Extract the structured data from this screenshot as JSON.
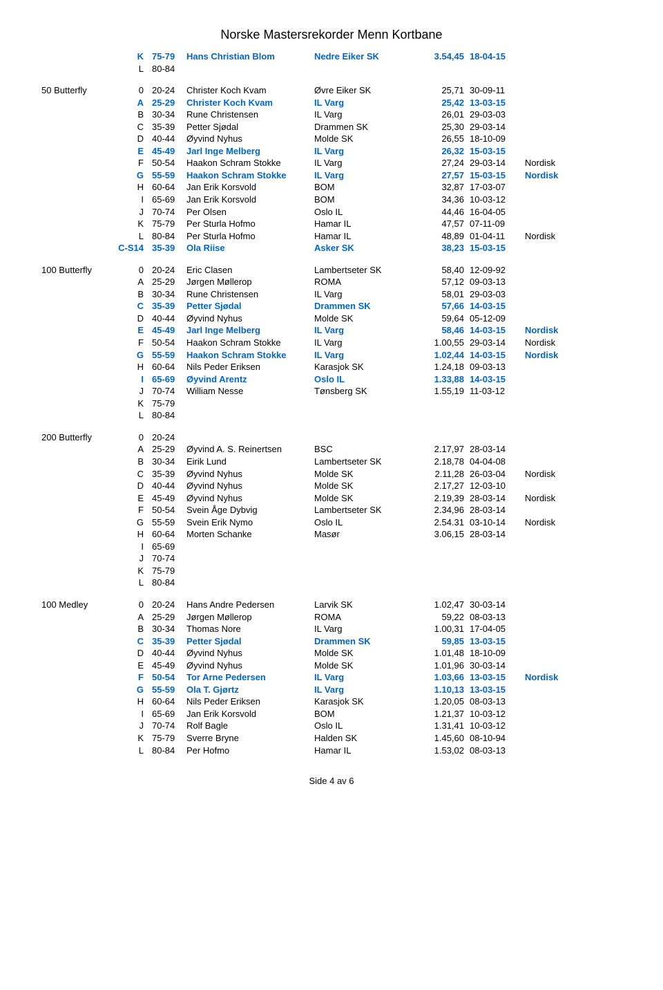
{
  "title": "Norske Mastersrekorder Menn Kortbane",
  "footer": "Side 4 av 6",
  "colors": {
    "highlight": "#0066cc",
    "text": "#000000",
    "background": "#ffffff"
  },
  "sections": [
    {
      "event": "",
      "rows": [
        {
          "letter": "K",
          "age": "75-79",
          "name": "Hans Christian Blom",
          "club": "Nedre Eiker SK",
          "time": "3.54,45",
          "date": "18-04-15",
          "note": "",
          "blue": true,
          "bold": true
        },
        {
          "letter": "L",
          "age": "80-84",
          "name": "",
          "club": "",
          "time": "",
          "date": "",
          "note": "",
          "blue": false,
          "bold": false
        }
      ]
    },
    {
      "event": "50 Butterfly",
      "rows": [
        {
          "letter": "0",
          "age": "20-24",
          "name": "Christer Koch Kvam",
          "club": "Øvre Eiker SK",
          "time": "25,71",
          "date": "30-09-11",
          "note": "",
          "blue": false,
          "bold": false
        },
        {
          "letter": "A",
          "age": "25-29",
          "name": "Christer Koch Kvam",
          "club": "IL Varg",
          "time": "25,42",
          "date": "13-03-15",
          "note": "",
          "blue": true,
          "bold": true
        },
        {
          "letter": "B",
          "age": "30-34",
          "name": "Rune Christensen",
          "club": "IL Varg",
          "time": "26,01",
          "date": "29-03-03",
          "note": "",
          "blue": false,
          "bold": false
        },
        {
          "letter": "C",
          "age": "35-39",
          "name": "Petter Sjødal",
          "club": "Drammen SK",
          "time": "25,30",
          "date": "29-03-14",
          "note": "",
          "blue": false,
          "bold": false
        },
        {
          "letter": "D",
          "age": "40-44",
          "name": "Øyvind Nyhus",
          "club": "Molde SK",
          "time": "26,55",
          "date": "18-10-09",
          "note": "",
          "blue": false,
          "bold": false
        },
        {
          "letter": "E",
          "age": "45-49",
          "name": "Jarl Inge Melberg",
          "club": "IL Varg",
          "time": "26,32",
          "date": "15-03-15",
          "note": "",
          "blue": true,
          "bold": true
        },
        {
          "letter": "F",
          "age": "50-54",
          "name": "Haakon Schram Stokke",
          "club": "IL Varg",
          "time": "27,24",
          "date": "29-03-14",
          "note": "Nordisk",
          "blue": false,
          "bold": false
        },
        {
          "letter": "G",
          "age": "55-59",
          "name": "Haakon Schram Stokke",
          "club": "IL Varg",
          "time": "27,57",
          "date": "15-03-15",
          "note": "Nordisk",
          "blue": true,
          "bold": true
        },
        {
          "letter": "H",
          "age": "60-64",
          "name": "Jan Erik Korsvold",
          "club": "BOM",
          "time": "32,87",
          "date": "17-03-07",
          "note": "",
          "blue": false,
          "bold": false
        },
        {
          "letter": "I",
          "age": "65-69",
          "name": "Jan Erik Korsvold",
          "club": "BOM",
          "time": "34,36",
          "date": "10-03-12",
          "note": "",
          "blue": false,
          "bold": false
        },
        {
          "letter": "J",
          "age": "70-74",
          "name": "Per Olsen",
          "club": "Oslo IL",
          "time": "44,46",
          "date": "16-04-05",
          "note": "",
          "blue": false,
          "bold": false
        },
        {
          "letter": "K",
          "age": "75-79",
          "name": "Per Sturla Hofmo",
          "club": "Hamar IL",
          "time": "47,57",
          "date": "07-11-09",
          "note": "",
          "blue": false,
          "bold": false
        },
        {
          "letter": "L",
          "age": "80-84",
          "name": "Per Sturla Hofmo",
          "club": "Hamar IL",
          "time": "48,89",
          "date": "01-04-11",
          "note": "Nordisk",
          "blue": false,
          "bold": false
        },
        {
          "letter": "C-S14",
          "age": "35-39",
          "name": "Ola Riise",
          "club": "Asker SK",
          "time": "38,23",
          "date": "15-03-15",
          "note": "",
          "blue": true,
          "bold": true
        }
      ]
    },
    {
      "event": "100 Butterfly",
      "rows": [
        {
          "letter": "0",
          "age": "20-24",
          "name": "Eric Clasen",
          "club": "Lambertseter SK",
          "time": "58,40",
          "date": "12-09-92",
          "note": "",
          "blue": false,
          "bold": false
        },
        {
          "letter": "A",
          "age": "25-29",
          "name": "Jørgen Møllerop",
          "club": "ROMA",
          "time": "57,12",
          "date": "09-03-13",
          "note": "",
          "blue": false,
          "bold": false
        },
        {
          "letter": "B",
          "age": "30-34",
          "name": "Rune Christensen",
          "club": "IL Varg",
          "time": "58,01",
          "date": "29-03-03",
          "note": "",
          "blue": false,
          "bold": false
        },
        {
          "letter": "C",
          "age": "35-39",
          "name": "Petter Sjødal",
          "club": "Drammen SK",
          "time": "57,66",
          "date": "14-03-15",
          "note": "",
          "blue": true,
          "bold": true
        },
        {
          "letter": "D",
          "age": "40-44",
          "name": "Øyvind Nyhus",
          "club": "Molde SK",
          "time": "59,64",
          "date": "05-12-09",
          "note": "",
          "blue": false,
          "bold": false
        },
        {
          "letter": "E",
          "age": "45-49",
          "name": "Jarl Inge Melberg",
          "club": "IL Varg",
          "time": "58,46",
          "date": "14-03-15",
          "note": "Nordisk",
          "blue": true,
          "bold": true
        },
        {
          "letter": "F",
          "age": "50-54",
          "name": "Haakon Schram Stokke",
          "club": "IL Varg",
          "time": "1.00,55",
          "date": "29-03-14",
          "note": "Nordisk",
          "blue": false,
          "bold": false
        },
        {
          "letter": "G",
          "age": "55-59",
          "name": "Haakon Schram Stokke",
          "club": "IL Varg",
          "time": "1.02,44",
          "date": "14-03-15",
          "note": "Nordisk",
          "blue": true,
          "bold": true
        },
        {
          "letter": "H",
          "age": "60-64",
          "name": "Nils Peder Eriksen",
          "club": "Karasjok SK",
          "time": "1.24,18",
          "date": "09-03-13",
          "note": "",
          "blue": false,
          "bold": false
        },
        {
          "letter": "I",
          "age": "65-69",
          "name": "Øyvind Arentz",
          "club": "Oslo IL",
          "time": "1.33,88",
          "date": "14-03-15",
          "note": "",
          "blue": true,
          "bold": true
        },
        {
          "letter": "J",
          "age": "70-74",
          "name": "William Nesse",
          "club": "Tønsberg SK",
          "time": "1.55,19",
          "date": "11-03-12",
          "note": "",
          "blue": false,
          "bold": false
        },
        {
          "letter": "K",
          "age": "75-79",
          "name": "",
          "club": "",
          "time": "",
          "date": "",
          "note": "",
          "blue": false,
          "bold": false
        },
        {
          "letter": "L",
          "age": "80-84",
          "name": "",
          "club": "",
          "time": "",
          "date": "",
          "note": "",
          "blue": false,
          "bold": false
        }
      ]
    },
    {
      "event": "200 Butterfly",
      "rows": [
        {
          "letter": "0",
          "age": "20-24",
          "name": "",
          "club": "",
          "time": "",
          "date": "",
          "note": "",
          "blue": false,
          "bold": false
        },
        {
          "letter": "A",
          "age": "25-29",
          "name": "Øyvind A. S. Reinertsen",
          "club": "BSC",
          "time": "2.17,97",
          "date": "28-03-14",
          "note": "",
          "blue": false,
          "bold": false
        },
        {
          "letter": "B",
          "age": "30-34",
          "name": "Eirik Lund",
          "club": "Lambertseter SK",
          "time": "2.18,78",
          "date": "04-04-08",
          "note": "",
          "blue": false,
          "bold": false
        },
        {
          "letter": "C",
          "age": "35-39",
          "name": "Øyvind Nyhus",
          "club": "Molde SK",
          "time": "2.11,28",
          "date": "26-03-04",
          "note": "Nordisk",
          "blue": false,
          "bold": false
        },
        {
          "letter": "D",
          "age": "40-44",
          "name": "Øyvind Nyhus",
          "club": "Molde SK",
          "time": "2.17,27",
          "date": "12-03-10",
          "note": "",
          "blue": false,
          "bold": false
        },
        {
          "letter": "E",
          "age": "45-49",
          "name": "Øyvind Nyhus",
          "club": "Molde SK",
          "time": "2.19,39",
          "date": "28-03-14",
          "note": "Nordisk",
          "blue": false,
          "bold": false
        },
        {
          "letter": "F",
          "age": "50-54",
          "name": "Svein Åge Dybvig",
          "club": "Lambertseter SK",
          "time": "2.34,96",
          "date": "28-03-14",
          "note": "",
          "blue": false,
          "bold": false
        },
        {
          "letter": "G",
          "age": "55-59",
          "name": "Svein Erik Nymo",
          "club": "Oslo IL",
          "time": "2.54.31",
          "date": "03-10-14",
          "note": "Nordisk",
          "blue": false,
          "bold": false
        },
        {
          "letter": "H",
          "age": "60-64",
          "name": "Morten Schanke",
          "club": "Masør",
          "time": "3.06,15",
          "date": "28-03-14",
          "note": "",
          "blue": false,
          "bold": false
        },
        {
          "letter": "I",
          "age": "65-69",
          "name": "",
          "club": "",
          "time": "",
          "date": "",
          "note": "",
          "blue": false,
          "bold": false
        },
        {
          "letter": "J",
          "age": "70-74",
          "name": "",
          "club": "",
          "time": "",
          "date": "",
          "note": "",
          "blue": false,
          "bold": false
        },
        {
          "letter": "K",
          "age": "75-79",
          "name": "",
          "club": "",
          "time": "",
          "date": "",
          "note": "",
          "blue": false,
          "bold": false
        },
        {
          "letter": "L",
          "age": "80-84",
          "name": "",
          "club": "",
          "time": "",
          "date": "",
          "note": "",
          "blue": false,
          "bold": false
        }
      ]
    },
    {
      "event": "100 Medley",
      "rows": [
        {
          "letter": "0",
          "age": "20-24",
          "name": "Hans Andre Pedersen",
          "club": "Larvik SK",
          "time": "1.02,47",
          "date": "30-03-14",
          "note": "",
          "blue": false,
          "bold": false
        },
        {
          "letter": "A",
          "age": "25-29",
          "name": "Jørgen Møllerop",
          "club": "ROMA",
          "time": "59,22",
          "date": "08-03-13",
          "note": "",
          "blue": false,
          "bold": false
        },
        {
          "letter": "B",
          "age": "30-34",
          "name": "Thomas Nore",
          "club": "IL Varg",
          "time": "1.00,31",
          "date": "17-04-05",
          "note": "",
          "blue": false,
          "bold": false
        },
        {
          "letter": "C",
          "age": "35-39",
          "name": "Petter Sjødal",
          "club": "Drammen SK",
          "time": "59,85",
          "date": "13-03-15",
          "note": "",
          "blue": true,
          "bold": true
        },
        {
          "letter": "D",
          "age": "40-44",
          "name": "Øyvind Nyhus",
          "club": "Molde SK",
          "time": "1.01,48",
          "date": "18-10-09",
          "note": "",
          "blue": false,
          "bold": false
        },
        {
          "letter": "E",
          "age": "45-49",
          "name": "Øyvind Nyhus",
          "club": "Molde SK",
          "time": "1.01,96",
          "date": "30-03-14",
          "note": "",
          "blue": false,
          "bold": false
        },
        {
          "letter": "F",
          "age": "50-54",
          "name": "Tor Arne Pedersen",
          "club": "IL Varg",
          "time": "1.03,66",
          "date": "13-03-15",
          "note": "Nordisk",
          "blue": true,
          "bold": true
        },
        {
          "letter": "G",
          "age": "55-59",
          "name": "Ola T. Gjørtz",
          "club": "IL Varg",
          "time": "1.10,13",
          "date": "13-03-15",
          "note": "",
          "blue": true,
          "bold": true
        },
        {
          "letter": "H",
          "age": "60-64",
          "name": "Nils Peder Eriksen",
          "club": "Karasjok SK",
          "time": "1.20,05",
          "date": "08-03-13",
          "note": "",
          "blue": false,
          "bold": false
        },
        {
          "letter": "I",
          "age": "65-69",
          "name": "Jan Erik Korsvold",
          "club": "BOM",
          "time": "1.21,37",
          "date": "10-03-12",
          "note": "",
          "blue": false,
          "bold": false
        },
        {
          "letter": "J",
          "age": "70-74",
          "name": "Rolf Bagle",
          "club": "Oslo IL",
          "time": "1.31,41",
          "date": "10-03-12",
          "note": "",
          "blue": false,
          "bold": false
        },
        {
          "letter": "K",
          "age": "75-79",
          "name": "Sverre Bryne",
          "club": "Halden SK",
          "time": "1.45,60",
          "date": "08-10-94",
          "note": "",
          "blue": false,
          "bold": false
        },
        {
          "letter": "L",
          "age": "80-84",
          "name": "Per Hofmo",
          "club": "Hamar IL",
          "time": "1.53,02",
          "date": "08-03-13",
          "note": "",
          "blue": false,
          "bold": false
        }
      ]
    }
  ]
}
